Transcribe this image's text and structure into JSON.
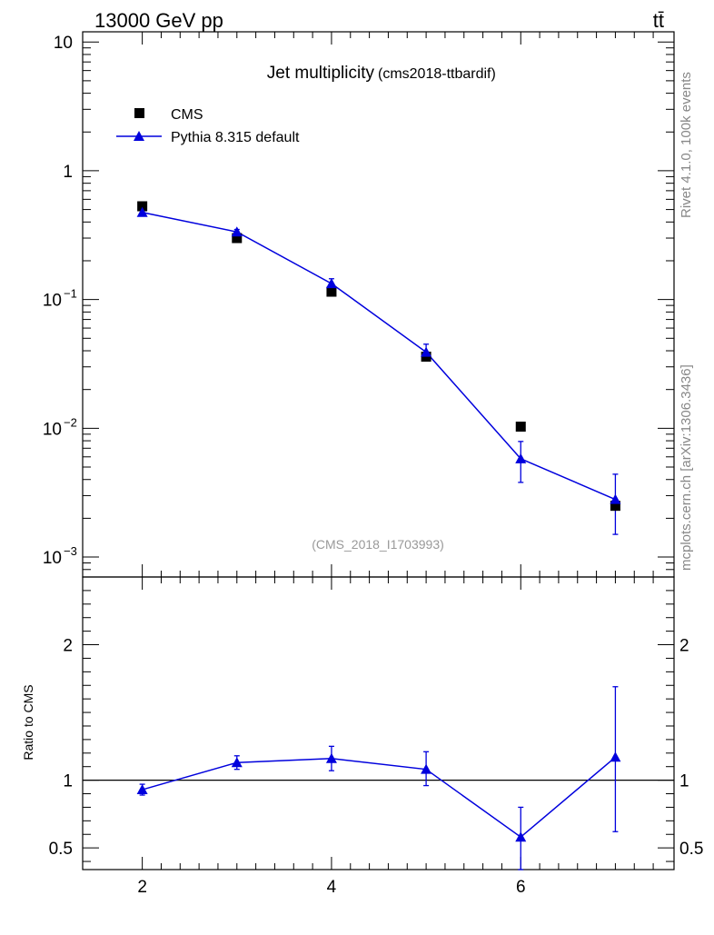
{
  "header": {
    "energy_label": "13000 GeV pp",
    "process_label": "tt̄"
  },
  "side_labels": {
    "rivet_info": "Rivet 4.1.0,  100k events",
    "source_info": "mcplots.cern.ch [arXiv:1306.3436]"
  },
  "colors": {
    "data": "#000000",
    "mc": "#0000dd",
    "watermark": "#999999",
    "side_text": "#888888"
  },
  "chart_data": [
    {
      "type": "scatter",
      "title": "Jet multiplicity",
      "subtitle": "(cms2018-ttbardif)",
      "watermark": "(CMS_2018_I1703993)",
      "xlabel": "",
      "ylabel": "",
      "xlim": [
        1.37,
        7.62
      ],
      "ylim": [
        0.0007,
        12
      ],
      "yscale": "log",
      "grid": false,
      "legend_position": "top-left",
      "x_ticks": [
        2,
        4,
        6
      ],
      "y_ticks": [
        {
          "value": 10,
          "label": "10",
          "exp": ""
        },
        {
          "value": 1,
          "label": "1",
          "exp": ""
        },
        {
          "value": 0.1,
          "label": "10",
          "exp": "−1"
        },
        {
          "value": 0.01,
          "label": "10",
          "exp": "−2"
        },
        {
          "value": 0.001,
          "label": "10",
          "exp": "−3"
        }
      ],
      "series": [
        {
          "name": "CMS",
          "marker": "square",
          "x": [
            2,
            3,
            4,
            5,
            6,
            7
          ],
          "y": [
            0.53,
            0.3,
            0.115,
            0.036,
            0.0103,
            0.0025
          ]
        },
        {
          "name": "Pythia 8.315 default",
          "marker": "triangle",
          "x": [
            2,
            3,
            4,
            5,
            6,
            7
          ],
          "y": [
            0.475,
            0.335,
            0.133,
            0.039,
            0.0058,
            0.0028
          ],
          "yerr_low": [
            0.46,
            0.32,
            0.124,
            0.035,
            0.0038,
            0.0015
          ],
          "yerr_high": [
            0.49,
            0.35,
            0.145,
            0.045,
            0.0079,
            0.0044
          ]
        }
      ]
    },
    {
      "type": "line",
      "title": "",
      "xlabel": "",
      "ylabel": "Ratio to CMS",
      "xlim": [
        1.37,
        7.62
      ],
      "ylim": [
        0.34,
        2.5
      ],
      "reference_line": 1,
      "x_ticks": [
        2,
        4,
        6
      ],
      "y_ticks": [
        {
          "value": 2,
          "label": "2"
        },
        {
          "value": 1,
          "label": "1"
        },
        {
          "value": 0.5,
          "label": "0.5"
        }
      ],
      "series": [
        {
          "name": "Pythia 8.315 default",
          "x": [
            2,
            3,
            4,
            5,
            6,
            7
          ],
          "y": [
            0.93,
            1.13,
            1.16,
            1.08,
            0.58,
            1.17
          ],
          "yerr_low": [
            0.89,
            1.08,
            1.07,
            0.96,
            0.34,
            0.62
          ],
          "yerr_high": [
            0.97,
            1.18,
            1.25,
            1.21,
            0.8,
            1.69
          ]
        }
      ]
    }
  ]
}
